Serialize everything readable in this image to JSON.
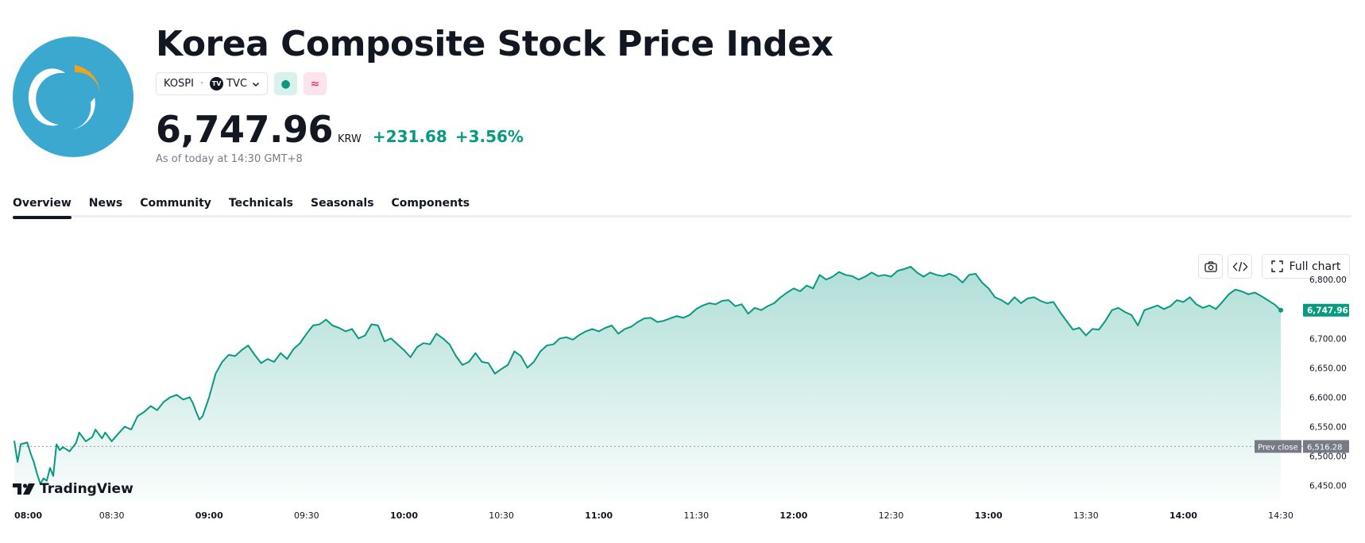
{
  "header": {
    "logo_icon": "kospi-crescent-logo",
    "title": "Korea Composite Stock Price Index",
    "symbol": "KOSPI",
    "exchange": "TVC",
    "market_status_icon": "market-open-dot-icon",
    "derived_icon": "approx-icon",
    "price": "6,747.96",
    "currency": "KRW",
    "change": "+231.68",
    "change_pct": "+3.56%",
    "as_of": "As of today at 14:30 GMT+8"
  },
  "tabs": [
    {
      "label": "Overview",
      "active": true
    },
    {
      "label": "News",
      "active": false
    },
    {
      "label": "Community",
      "active": false
    },
    {
      "label": "Technicals",
      "active": false
    },
    {
      "label": "Seasonals",
      "active": false
    },
    {
      "label": "Components",
      "active": false
    }
  ],
  "toolbar": {
    "full_chart_label": "Full chart"
  },
  "branding": {
    "watermark": "TradingView"
  },
  "colors": {
    "accent": "#089981",
    "logo_bg": "#3ba8d0",
    "prev_close_badge": "#787b86"
  },
  "chart_data": {
    "type": "area",
    "ylim": [
      6425,
      6830
    ],
    "y_ticks": [
      "6,800.00",
      "6,750.00",
      "6,700.00",
      "6,650.00",
      "6,600.00",
      "6,550.00",
      "6,500.00",
      "6,450.00"
    ],
    "y_tick_values": [
      6800,
      6750,
      6700,
      6650,
      6600,
      6550,
      6500,
      6450
    ],
    "x_ticks": [
      {
        "label": "08:00",
        "bold": true
      },
      {
        "label": "08:30",
        "bold": false
      },
      {
        "label": "09:00",
        "bold": true
      },
      {
        "label": "09:30",
        "bold": false
      },
      {
        "label": "10:00",
        "bold": true
      },
      {
        "label": "10:30",
        "bold": false
      },
      {
        "label": "11:00",
        "bold": true
      },
      {
        "label": "11:30",
        "bold": false
      },
      {
        "label": "12:00",
        "bold": true
      },
      {
        "label": "12:30",
        "bold": false
      },
      {
        "label": "13:00",
        "bold": true
      },
      {
        "label": "13:30",
        "bold": false
      },
      {
        "label": "14:00",
        "bold": true
      },
      {
        "label": "14:30",
        "bold": false
      }
    ],
    "x_range_minutes": [
      0,
      390
    ],
    "prev_close": 6516.28,
    "prev_close_label": "Prev close",
    "prev_close_value": "6,516.28",
    "last_value": "6,747.96",
    "series": [
      {
        "points": [
          [
            0,
            6526
          ],
          [
            1,
            6490
          ],
          [
            2,
            6520
          ],
          [
            4,
            6523
          ],
          [
            5,
            6505
          ],
          [
            6,
            6490
          ],
          [
            7,
            6470
          ],
          [
            8,
            6453
          ],
          [
            9,
            6462
          ],
          [
            10,
            6458
          ],
          [
            11,
            6480
          ],
          [
            12,
            6466
          ],
          [
            13,
            6520
          ],
          [
            14,
            6510
          ],
          [
            15,
            6515
          ],
          [
            17,
            6508
          ],
          [
            19,
            6522
          ],
          [
            20,
            6540
          ],
          [
            22,
            6525
          ],
          [
            24,
            6532
          ],
          [
            25,
            6545
          ],
          [
            27,
            6530
          ],
          [
            28,
            6540
          ],
          [
            30,
            6525
          ],
          [
            32,
            6538
          ],
          [
            34,
            6550
          ],
          [
            36,
            6545
          ],
          [
            38,
            6568
          ],
          [
            40,
            6575
          ],
          [
            42,
            6585
          ],
          [
            44,
            6578
          ],
          [
            46,
            6592
          ],
          [
            48,
            6600
          ],
          [
            50,
            6604
          ],
          [
            52,
            6596
          ],
          [
            54,
            6600
          ],
          [
            55,
            6590
          ],
          [
            56,
            6575
          ],
          [
            57,
            6562
          ],
          [
            58,
            6568
          ],
          [
            60,
            6600
          ],
          [
            62,
            6640
          ],
          [
            64,
            6660
          ],
          [
            66,
            6672
          ],
          [
            68,
            6670
          ],
          [
            70,
            6680
          ],
          [
            72,
            6688
          ],
          [
            74,
            6672
          ],
          [
            76,
            6658
          ],
          [
            78,
            6665
          ],
          [
            80,
            6660
          ],
          [
            82,
            6675
          ],
          [
            84,
            6665
          ],
          [
            86,
            6682
          ],
          [
            88,
            6692
          ],
          [
            90,
            6708
          ],
          [
            92,
            6722
          ],
          [
            94,
            6724
          ],
          [
            96,
            6732
          ],
          [
            98,
            6722
          ],
          [
            100,
            6718
          ],
          [
            102,
            6712
          ],
          [
            104,
            6716
          ],
          [
            106,
            6700
          ],
          [
            108,
            6705
          ],
          [
            110,
            6724
          ],
          [
            112,
            6722
          ],
          [
            114,
            6695
          ],
          [
            116,
            6700
          ],
          [
            118,
            6690
          ],
          [
            120,
            6680
          ],
          [
            122,
            6668
          ],
          [
            124,
            6685
          ],
          [
            126,
            6692
          ],
          [
            128,
            6690
          ],
          [
            130,
            6708
          ],
          [
            132,
            6700
          ],
          [
            134,
            6690
          ],
          [
            136,
            6670
          ],
          [
            138,
            6655
          ],
          [
            140,
            6660
          ],
          [
            142,
            6675
          ],
          [
            144,
            6660
          ],
          [
            146,
            6658
          ],
          [
            148,
            6640
          ],
          [
            150,
            6648
          ],
          [
            152,
            6655
          ],
          [
            154,
            6678
          ],
          [
            156,
            6670
          ],
          [
            158,
            6650
          ],
          [
            160,
            6660
          ],
          [
            162,
            6678
          ],
          [
            164,
            6688
          ],
          [
            166,
            6690
          ],
          [
            168,
            6700
          ],
          [
            170,
            6702
          ],
          [
            172,
            6698
          ],
          [
            174,
            6706
          ],
          [
            176,
            6712
          ],
          [
            178,
            6716
          ],
          [
            180,
            6712
          ],
          [
            182,
            6718
          ],
          [
            184,
            6722
          ],
          [
            186,
            6708
          ],
          [
            188,
            6716
          ],
          [
            190,
            6720
          ],
          [
            192,
            6728
          ],
          [
            194,
            6734
          ],
          [
            196,
            6735
          ],
          [
            198,
            6728
          ],
          [
            200,
            6730
          ],
          [
            202,
            6734
          ],
          [
            204,
            6738
          ],
          [
            206,
            6735
          ],
          [
            208,
            6740
          ],
          [
            210,
            6750
          ],
          [
            212,
            6756
          ],
          [
            214,
            6760
          ],
          [
            216,
            6758
          ],
          [
            218,
            6764
          ],
          [
            220,
            6765
          ],
          [
            222,
            6755
          ],
          [
            224,
            6758
          ],
          [
            226,
            6742
          ],
          [
            228,
            6752
          ],
          [
            230,
            6748
          ],
          [
            232,
            6755
          ],
          [
            234,
            6760
          ],
          [
            236,
            6770
          ],
          [
            238,
            6778
          ],
          [
            240,
            6785
          ],
          [
            242,
            6780
          ],
          [
            244,
            6790
          ],
          [
            246,
            6785
          ],
          [
            248,
            6808
          ],
          [
            250,
            6800
          ],
          [
            252,
            6805
          ],
          [
            254,
            6813
          ],
          [
            256,
            6808
          ],
          [
            258,
            6806
          ],
          [
            260,
            6800
          ],
          [
            262,
            6805
          ],
          [
            264,
            6812
          ],
          [
            266,
            6806
          ],
          [
            268,
            6808
          ],
          [
            270,
            6805
          ],
          [
            272,
            6815
          ],
          [
            274,
            6818
          ],
          [
            276,
            6822
          ],
          [
            278,
            6812
          ],
          [
            280,
            6805
          ],
          [
            282,
            6812
          ],
          [
            284,
            6808
          ],
          [
            286,
            6806
          ],
          [
            288,
            6810
          ],
          [
            290,
            6805
          ],
          [
            292,
            6795
          ],
          [
            294,
            6808
          ],
          [
            296,
            6810
          ],
          [
            298,
            6795
          ],
          [
            300,
            6785
          ],
          [
            302,
            6770
          ],
          [
            304,
            6765
          ],
          [
            306,
            6758
          ],
          [
            308,
            6770
          ],
          [
            310,
            6760
          ],
          [
            312,
            6768
          ],
          [
            314,
            6770
          ],
          [
            316,
            6764
          ],
          [
            318,
            6760
          ],
          [
            320,
            6762
          ],
          [
            322,
            6745
          ],
          [
            324,
            6730
          ],
          [
            326,
            6715
          ],
          [
            328,
            6718
          ],
          [
            330,
            6705
          ],
          [
            332,
            6716
          ],
          [
            334,
            6715
          ],
          [
            336,
            6730
          ],
          [
            338,
            6748
          ],
          [
            340,
            6752
          ],
          [
            342,
            6745
          ],
          [
            344,
            6740
          ],
          [
            346,
            6722
          ],
          [
            348,
            6748
          ],
          [
            350,
            6752
          ],
          [
            352,
            6756
          ],
          [
            354,
            6750
          ],
          [
            356,
            6755
          ],
          [
            358,
            6765
          ],
          [
            360,
            6762
          ],
          [
            362,
            6770
          ],
          [
            364,
            6758
          ],
          [
            366,
            6752
          ],
          [
            368,
            6756
          ],
          [
            370,
            6750
          ],
          [
            372,
            6762
          ],
          [
            374,
            6775
          ],
          [
            376,
            6783
          ],
          [
            378,
            6780
          ],
          [
            380,
            6775
          ],
          [
            382,
            6778
          ],
          [
            384,
            6772
          ],
          [
            386,
            6765
          ],
          [
            388,
            6758
          ],
          [
            390,
            6748
          ]
        ]
      }
    ]
  }
}
